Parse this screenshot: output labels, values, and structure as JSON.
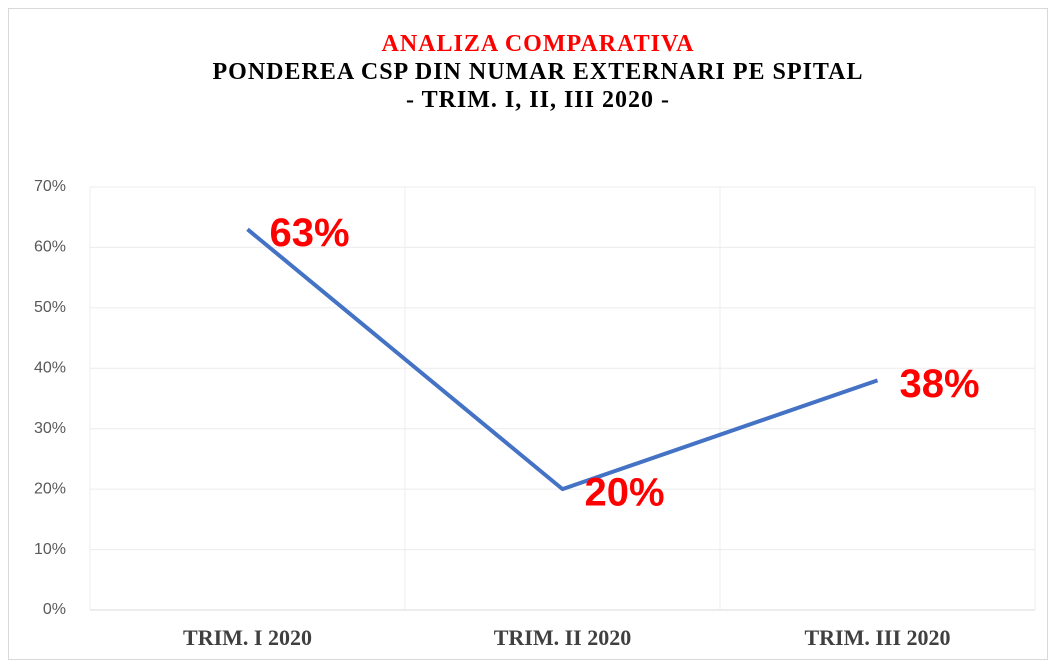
{
  "chart_data": {
    "type": "line",
    "title": "ANALIZA COMPARATIVA",
    "subtitle": "PONDEREA CSP DIN NUMAR EXTERNARI PE SPITAL",
    "period": "- TRIM. I, II, III 2020 -",
    "categories": [
      "TRIM. I 2020",
      "TRIM. II 2020",
      "TRIM. III 2020"
    ],
    "series": [
      {
        "name": "CSP",
        "color": "#4472c4",
        "values": [
          63,
          20,
          38
        ],
        "value_labels": [
          "63%",
          "20%",
          "38%"
        ]
      }
    ],
    "ylim": [
      0,
      70
    ],
    "yticks": [
      {
        "value": 0,
        "label": "0%"
      },
      {
        "value": 10,
        "label": "10%"
      },
      {
        "value": 20,
        "label": "20%"
      },
      {
        "value": 30,
        "label": "30%"
      },
      {
        "value": 40,
        "label": "40%"
      },
      {
        "value": 50,
        "label": "50%"
      },
      {
        "value": 60,
        "label": "60%"
      },
      {
        "value": 70,
        "label": "70%"
      }
    ],
    "grid": true
  }
}
